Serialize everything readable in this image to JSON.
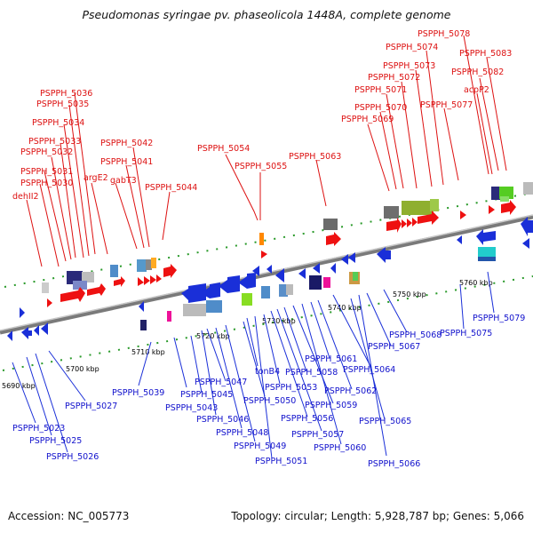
{
  "title": "Pseudomonas syringae pv. phaseolicola 1448A, complete genome",
  "footer": {
    "accession": "Accession: NC_005773",
    "info": "Topology: circular; Length: 5,928,787 bp; Genes: 5,066"
  },
  "colors": {
    "forward_gene": "#ee1111",
    "reverse_gene": "#1a2fd8",
    "forward_label": "#dd1111",
    "reverse_label": "#1111cc",
    "backbone": "#8a8a8a",
    "tick": "#2a9a2a"
  },
  "scale_labels": [
    "5690 kbp",
    "5700 kbp",
    "5710 kbp",
    "5720 kbp",
    "5730 kbp",
    "5740 kbp",
    "5750 kbp",
    "5760 kbp"
  ],
  "top_labels": [
    "dehII2",
    "PSPPH_5030",
    "PSPPH_5031",
    "PSPPH_5032",
    "PSPPH_5033",
    "PSPPH_5034",
    "PSPPH_5035",
    "PSPPH_5036",
    "argE2",
    "gabT3",
    "PSPPH_5041",
    "PSPPH_5042",
    "PSPPH_5044",
    "PSPPH_5054",
    "PSPPH_5055",
    "PSPPH_5063",
    "PSPPH_5069",
    "PSPPH_5070",
    "PSPPH_5071",
    "PSPPH_5072",
    "PSPPH_5073",
    "PSPPH_5074",
    "PSPPH_5077",
    "PSPPH_5078",
    "acpP2",
    "PSPPH_5082",
    "PSPPH_5083"
  ],
  "bottom_labels": [
    "PSPPH_5023",
    "PSPPH_5025",
    "PSPPH_5026",
    "PSPPH_5027",
    "PSPPH_5039",
    "PSPPH_5043",
    "PSPPH_5045",
    "PSPPH_5046",
    "PSPPH_5047",
    "PSPPH_5048",
    "PSPPH_5049",
    "PSPPH_5050",
    "PSPPH_5051",
    "tonB4",
    "PSPPH_5053",
    "PSPPH_5056",
    "PSPPH_5057",
    "PSPPH_5058",
    "PSPPH_5059",
    "PSPPH_5060",
    "PSPPH_5061",
    "PSPPH_5062",
    "PSPPH_5064",
    "PSPPH_5065",
    "PSPPH_5066",
    "PSPPH_5067",
    "PSPPH_5068",
    "PSPPH_5075",
    "PSPPH_5079"
  ]
}
